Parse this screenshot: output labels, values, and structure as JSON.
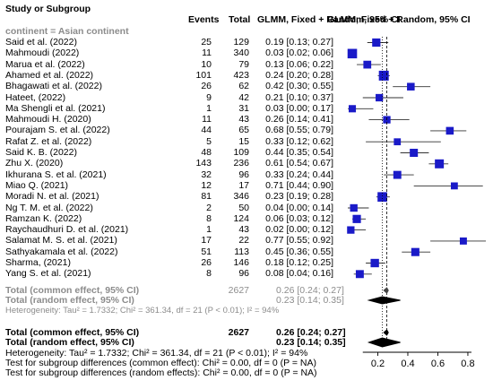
{
  "chart_data": {
    "type": "forest",
    "columns": {
      "study": "Study or Subgroup",
      "events": "Events",
      "total": "Total",
      "ci_header_1": "GLMM, Fixed + Random, 95% CI",
      "ci_header_2": "GLMM, Fixed + Random, 95% CI"
    },
    "subgroup_label": "continent = Asian continent",
    "studies": [
      {
        "name": "Said et al. (2022)",
        "events": 25,
        "total": 129,
        "est": 0.19,
        "lo": 0.13,
        "hi": 0.27,
        "ci_text": "0.19 [0.13; 0.27]"
      },
      {
        "name": "Mahmoudi (2022)",
        "events": 11,
        "total": 340,
        "est": 0.03,
        "lo": 0.02,
        "hi": 0.06,
        "ci_text": "0.03 [0.02; 0.06]"
      },
      {
        "name": "Marua et al. (2022)",
        "events": 10,
        "total": 79,
        "est": 0.13,
        "lo": 0.06,
        "hi": 0.22,
        "ci_text": "0.13 [0.06; 0.22]"
      },
      {
        "name": "Ahamed et al. (2022)",
        "events": 101,
        "total": 423,
        "est": 0.24,
        "lo": 0.2,
        "hi": 0.28,
        "ci_text": "0.24 [0.20; 0.28]"
      },
      {
        "name": "Bhagawati et al. (2022)",
        "events": 26,
        "total": 62,
        "est": 0.42,
        "lo": 0.3,
        "hi": 0.55,
        "ci_text": "0.42 [0.30; 0.55]"
      },
      {
        "name": "Hateet, (2022)",
        "events": 9,
        "total": 42,
        "est": 0.21,
        "lo": 0.1,
        "hi": 0.37,
        "ci_text": "0.21 [0.10; 0.37]"
      },
      {
        "name": "Ma Shengli et al. (2021)",
        "events": 1,
        "total": 31,
        "est": 0.03,
        "lo": 0.0,
        "hi": 0.17,
        "ci_text": "0.03 [0.00; 0.17]"
      },
      {
        "name": "Mahmoudi H. (2020)",
        "events": 11,
        "total": 43,
        "est": 0.26,
        "lo": 0.14,
        "hi": 0.41,
        "ci_text": "0.26 [0.14; 0.41]"
      },
      {
        "name": "Pourajam S. et al. (2022)",
        "events": 44,
        "total": 65,
        "est": 0.68,
        "lo": 0.55,
        "hi": 0.79,
        "ci_text": "0.68 [0.55; 0.79]"
      },
      {
        "name": "Rafat Z. et al. (2022)",
        "events": 5,
        "total": 15,
        "est": 0.33,
        "lo": 0.12,
        "hi": 0.62,
        "ci_text": "0.33 [0.12; 0.62]"
      },
      {
        "name": "Said K. B. (2022)",
        "events": 48,
        "total": 109,
        "est": 0.44,
        "lo": 0.35,
        "hi": 0.54,
        "ci_text": "0.44 [0.35; 0.54]"
      },
      {
        "name": "Zhu X. (2020)",
        "events": 143,
        "total": 236,
        "est": 0.61,
        "lo": 0.54,
        "hi": 0.67,
        "ci_text": "0.61 [0.54; 0.67]"
      },
      {
        "name": "Ikhurana S. et al. (2021)",
        "events": 32,
        "total": 96,
        "est": 0.33,
        "lo": 0.24,
        "hi": 0.44,
        "ci_text": "0.33 [0.24; 0.44]"
      },
      {
        "name": "Miao Q. (2021)",
        "events": 12,
        "total": 17,
        "est": 0.71,
        "lo": 0.44,
        "hi": 0.9,
        "ci_text": "0.71 [0.44; 0.90]"
      },
      {
        "name": "Moradi N. et al. (2021)",
        "events": 81,
        "total": 346,
        "est": 0.23,
        "lo": 0.19,
        "hi": 0.28,
        "ci_text": "0.23 [0.19; 0.28]"
      },
      {
        "name": "Ng T. M. et al. (2022)",
        "events": 2,
        "total": 50,
        "est": 0.04,
        "lo": 0.0,
        "hi": 0.14,
        "ci_text": "0.04 [0.00; 0.14]"
      },
      {
        "name": "Ramzan K. (2022)",
        "events": 8,
        "total": 124,
        "est": 0.06,
        "lo": 0.03,
        "hi": 0.12,
        "ci_text": "0.06 [0.03; 0.12]"
      },
      {
        "name": "Raychaudhuri D. et al. (2021)",
        "events": 1,
        "total": 43,
        "est": 0.02,
        "lo": 0.0,
        "hi": 0.12,
        "ci_text": "0.02 [0.00; 0.12]"
      },
      {
        "name": "Salamat M. S. et al. (2021)",
        "events": 17,
        "total": 22,
        "est": 0.77,
        "lo": 0.55,
        "hi": 0.92,
        "ci_text": "0.77 [0.55; 0.92]"
      },
      {
        "name": "Sathyakamala et al. (2022)",
        "events": 51,
        "total": 113,
        "est": 0.45,
        "lo": 0.36,
        "hi": 0.55,
        "ci_text": "0.45 [0.36; 0.55]"
      },
      {
        "name": "Sharma, (2021)",
        "events": 26,
        "total": 146,
        "est": 0.18,
        "lo": 0.12,
        "hi": 0.25,
        "ci_text": "0.18 [0.12; 0.25]"
      },
      {
        "name": "Yang S. et al. (2021)",
        "events": 8,
        "total": 96,
        "est": 0.08,
        "lo": 0.04,
        "hi": 0.16,
        "ci_text": "0.08 [0.04; 0.16]"
      }
    ],
    "subgroup_summary": {
      "common": {
        "label": "Total (common effect, 95% CI)",
        "total": 2627,
        "est": 0.26,
        "lo": 0.24,
        "hi": 0.27,
        "ci_text": "0.26 [0.24; 0.27]"
      },
      "random": {
        "label": "Total (random effect, 95% CI)",
        "est": 0.23,
        "lo": 0.14,
        "hi": 0.35,
        "ci_text": "0.23 [0.14; 0.35]"
      },
      "heterogeneity": "Heterogeneity: Tau² = 1.7332; Chi² = 361.34, df = 21 (P < 0.01); I² = 94%"
    },
    "overall": {
      "common": {
        "label": "Total (common effect, 95% CI)",
        "total": 2627,
        "est": 0.26,
        "lo": 0.24,
        "hi": 0.27,
        "ci_text": "0.26 [0.24; 0.27]"
      },
      "random": {
        "label": "Total (random effect, 95% CI)",
        "est": 0.23,
        "lo": 0.14,
        "hi": 0.35,
        "ci_text": "0.23 [0.14; 0.35]"
      },
      "heterogeneity": "Heterogeneity: Tau² = 1.7332; Chi² = 361.34, df = 21 (P < 0.01); I² = 94%",
      "test_common": "Test for subgroup differences (common effect): Chi² = 0.00, df = 0 (P = NA)",
      "test_random": "Test for subgroup differences (random effects): Chi² = 0.00, df = 0 (P = NA)"
    },
    "x_axis": {
      "ticks": [
        0.2,
        0.4,
        0.6,
        0.8
      ],
      "tick_labels": [
        "0.2",
        "0.4",
        "0.6",
        "0.8"
      ],
      "range": [
        0.0,
        0.86
      ]
    },
    "reference_line": 0.26,
    "colors": {
      "square": "#1a1ac8",
      "text": "#000000",
      "muted": "#8c8c8c",
      "ci_line": "#333333"
    }
  }
}
